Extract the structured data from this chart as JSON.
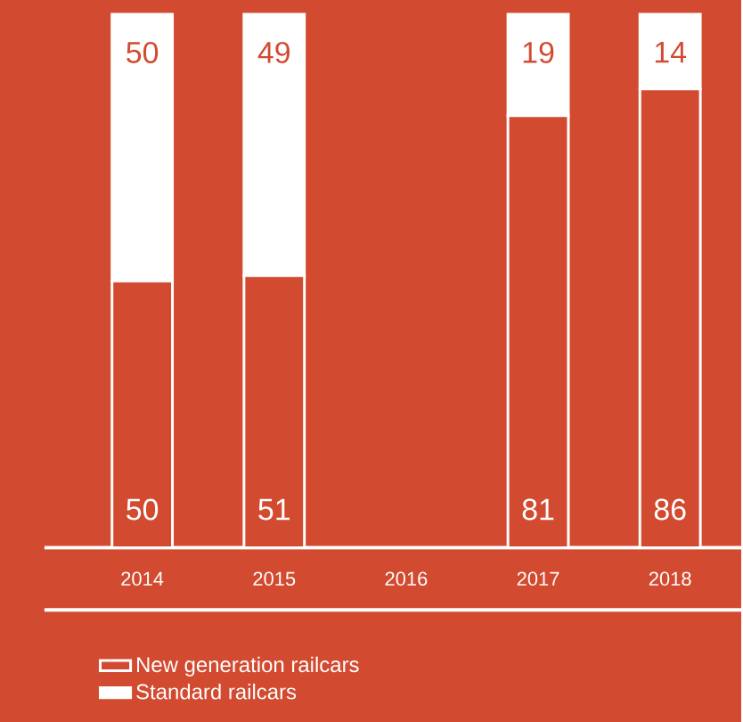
{
  "chart_data": {
    "type": "bar",
    "stacked": true,
    "categories": [
      "2014",
      "2015",
      "2016",
      "2017",
      "2018"
    ],
    "series": [
      {
        "name": "New generation railcars",
        "color": "#d24b30",
        "values": [
          50,
          51,
          null,
          81,
          86
        ]
      },
      {
        "name": "Standard railcars",
        "color": "#ffffff",
        "values": [
          50,
          49,
          null,
          19,
          14
        ]
      }
    ],
    "tick_labels": "x",
    "data_labels": true,
    "legend": "bottom left"
  }
}
